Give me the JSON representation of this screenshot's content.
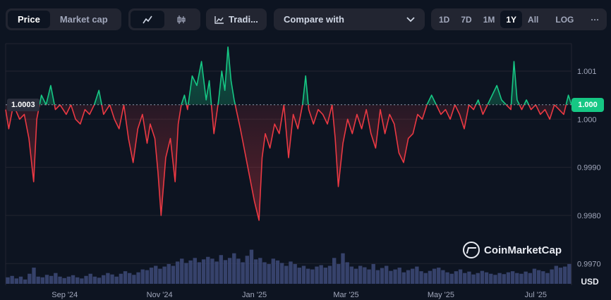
{
  "toolbar": {
    "price_label": "Price",
    "marketcap_label": "Market cap",
    "trading_label": "Tradi...",
    "compare_label": "Compare with",
    "ranges": [
      "1D",
      "7D",
      "1M",
      "1Y",
      "All"
    ],
    "active_range": "1Y",
    "log_label": "LOG",
    "more_label": "···"
  },
  "badges": {
    "current_price": "1.000",
    "reference": "1.0003"
  },
  "watermark": "CoinMarketCap",
  "colors": {
    "up": "#16c784",
    "down": "#ea3943",
    "volume": "#3e4a78",
    "background": "#0d1421",
    "grid": "#222531"
  },
  "chart_data": {
    "type": "line",
    "title": "",
    "xlabel": "",
    "ylabel": "",
    "currency": "USD",
    "baseline": 1.0003,
    "ylim": [
      0.99655,
      1.00157
    ],
    "yticks": [
      {
        "value": 1.001,
        "label": "1.001"
      },
      {
        "value": 1.0,
        "label": "1.000"
      },
      {
        "value": 0.999,
        "label": "0.9990"
      },
      {
        "value": 0.998,
        "label": "0.9980"
      },
      {
        "value": 0.997,
        "label": "0.9970"
      }
    ],
    "xlim": [
      "2024-07-25",
      "2025-07-24"
    ],
    "xticks": [
      {
        "date": "2024-09-01",
        "label": "Sep '24"
      },
      {
        "date": "2024-11-01",
        "label": "Nov '24"
      },
      {
        "date": "2025-01-01",
        "label": "Jan '25"
      },
      {
        "date": "2025-03-01",
        "label": "Mar '25"
      },
      {
        "date": "2025-05-01",
        "label": "May '25"
      },
      {
        "date": "2025-07-01",
        "label": "Jul '25"
      }
    ],
    "series": [
      {
        "points": [
          [
            "2024-07-25",
            1.0002
          ],
          [
            "2024-07-27",
            0.9998
          ],
          [
            "2024-07-30",
            1.0003
          ],
          [
            "2024-08-03",
            1.0
          ],
          [
            "2024-08-06",
            1.0001
          ],
          [
            "2024-08-09",
            0.9996
          ],
          [
            "2024-08-12",
            0.9987
          ],
          [
            "2024-08-14",
            1.0
          ],
          [
            "2024-08-17",
            1.0005
          ],
          [
            "2024-08-20",
            1.0003
          ],
          [
            "2024-08-23",
            1.0007
          ],
          [
            "2024-08-26",
            1.0002
          ],
          [
            "2024-08-29",
            1.0003
          ],
          [
            "2024-09-02",
            1.0001
          ],
          [
            "2024-09-05",
            1.0003
          ],
          [
            "2024-09-08",
            1.0
          ],
          [
            "2024-09-11",
            0.9999
          ],
          [
            "2024-09-14",
            1.0002
          ],
          [
            "2024-09-17",
            1.0001
          ],
          [
            "2024-09-20",
            1.0003
          ],
          [
            "2024-09-23",
            1.0006
          ],
          [
            "2024-09-26",
            1.0001
          ],
          [
            "2024-09-30",
            1.0003
          ],
          [
            "2024-10-03",
            1.0
          ],
          [
            "2024-10-06",
            0.9998
          ],
          [
            "2024-10-09",
            1.0003
          ],
          [
            "2024-10-12",
            0.9996
          ],
          [
            "2024-10-15",
            0.9991
          ],
          [
            "2024-10-18",
            0.9998
          ],
          [
            "2024-10-21",
            1.0001
          ],
          [
            "2024-10-24",
            0.9995
          ],
          [
            "2024-10-26",
            0.9999
          ],
          [
            "2024-10-29",
            0.9996
          ],
          [
            "2024-10-31",
            0.9989
          ],
          [
            "2024-11-02",
            0.998
          ],
          [
            "2024-11-05",
            0.9992
          ],
          [
            "2024-11-08",
            0.9996
          ],
          [
            "2024-11-11",
            0.9987
          ],
          [
            "2024-11-13",
            0.9999
          ],
          [
            "2024-11-15",
            1.0003
          ],
          [
            "2024-11-17",
            1.0005
          ],
          [
            "2024-11-19",
            1.0002
          ],
          [
            "2024-11-22",
            1.0009
          ],
          [
            "2024-11-25",
            1.0007
          ],
          [
            "2024-11-28",
            1.0012
          ],
          [
            "2024-12-01",
            1.0004
          ],
          [
            "2024-12-03",
            1.0008
          ],
          [
            "2024-12-06",
            0.9997
          ],
          [
            "2024-12-09",
            1.0004
          ],
          [
            "2024-12-11",
            1.001
          ],
          [
            "2024-12-13",
            1.0006
          ],
          [
            "2024-12-15",
            1.0015
          ],
          [
            "2024-12-17",
            1.0008
          ],
          [
            "2024-12-19",
            1.0004
          ],
          [
            "2024-12-21",
            1.0001
          ],
          [
            "2024-12-23",
            0.9998
          ],
          [
            "2024-12-26",
            0.9993
          ],
          [
            "2024-12-29",
            0.9988
          ],
          [
            "2025-01-01",
            0.9983
          ],
          [
            "2025-01-04",
            0.9979
          ],
          [
            "2025-01-06",
            0.9992
          ],
          [
            "2025-01-08",
            0.9997
          ],
          [
            "2025-01-11",
            0.9994
          ],
          [
            "2025-01-14",
            0.9999
          ],
          [
            "2025-01-17",
            0.9997
          ],
          [
            "2025-01-20",
            1.0003
          ],
          [
            "2025-01-23",
            0.9992
          ],
          [
            "2025-01-26",
            1.0001
          ],
          [
            "2025-01-29",
            0.9998
          ],
          [
            "2025-02-01",
            1.0003
          ],
          [
            "2025-02-03",
            1.0009
          ],
          [
            "2025-02-05",
            1.0002
          ],
          [
            "2025-02-08",
            0.9999
          ],
          [
            "2025-02-11",
            1.0002
          ],
          [
            "2025-02-14",
            1.0001
          ],
          [
            "2025-02-17",
            0.9999
          ],
          [
            "2025-02-20",
            1.0003
          ],
          [
            "2025-02-22",
            0.9996
          ],
          [
            "2025-02-24",
            0.9986
          ],
          [
            "2025-02-27",
            0.9995
          ],
          [
            "2025-03-02",
            1.0
          ],
          [
            "2025-03-05",
            0.9997
          ],
          [
            "2025-03-08",
            1.0001
          ],
          [
            "2025-03-11",
            0.9998
          ],
          [
            "2025-03-14",
            1.0002
          ],
          [
            "2025-03-17",
            0.9997
          ],
          [
            "2025-03-20",
            0.9994
          ],
          [
            "2025-03-23",
            1.0002
          ],
          [
            "2025-03-26",
            0.9997
          ],
          [
            "2025-03-29",
            1.0001
          ],
          [
            "2025-04-01",
            0.9999
          ],
          [
            "2025-04-04",
            0.9993
          ],
          [
            "2025-04-07",
            0.9991
          ],
          [
            "2025-04-10",
            0.9996
          ],
          [
            "2025-04-13",
            0.9997
          ],
          [
            "2025-04-16",
            1.0001
          ],
          [
            "2025-04-19",
            1.0
          ],
          [
            "2025-04-22",
            1.0003
          ],
          [
            "2025-04-25",
            1.0005
          ],
          [
            "2025-04-28",
            1.0003
          ],
          [
            "2025-05-01",
            1.0001
          ],
          [
            "2025-05-04",
            1.0002
          ],
          [
            "2025-05-07",
            1.0
          ],
          [
            "2025-05-10",
            1.0003
          ],
          [
            "2025-05-13",
            1.0001
          ],
          [
            "2025-05-16",
            0.9998
          ],
          [
            "2025-05-19",
            1.0003
          ],
          [
            "2025-05-22",
            1.0002
          ],
          [
            "2025-05-25",
            1.0004
          ],
          [
            "2025-05-28",
            1.0001
          ],
          [
            "2025-05-31",
            1.0003
          ],
          [
            "2025-06-03",
            1.0005
          ],
          [
            "2025-06-06",
            1.0007
          ],
          [
            "2025-06-09",
            1.0004
          ],
          [
            "2025-06-12",
            1.0003
          ],
          [
            "2025-06-15",
            1.0002
          ],
          [
            "2025-06-17",
            1.0012
          ],
          [
            "2025-06-19",
            1.0004
          ],
          [
            "2025-06-22",
            1.0002
          ],
          [
            "2025-06-25",
            1.0004
          ],
          [
            "2025-06-28",
            1.0002
          ],
          [
            "2025-07-01",
            1.0003
          ],
          [
            "2025-07-04",
            1.0001
          ],
          [
            "2025-07-07",
            1.0002
          ],
          [
            "2025-07-10",
            1.0
          ],
          [
            "2025-07-13",
            1.0003
          ],
          [
            "2025-07-16",
            1.0002
          ],
          [
            "2025-07-19",
            1.0001
          ],
          [
            "2025-07-22",
            1.0005
          ],
          [
            "2025-07-24",
            1.0003
          ]
        ]
      }
    ],
    "volume": [
      0.18,
      0.22,
      0.15,
      0.2,
      0.12,
      0.28,
      0.45,
      0.2,
      0.18,
      0.25,
      0.22,
      0.3,
      0.2,
      0.16,
      0.2,
      0.24,
      0.18,
      0.15,
      0.22,
      0.28,
      0.2,
      0.17,
      0.24,
      0.3,
      0.26,
      0.2,
      0.28,
      0.35,
      0.3,
      0.25,
      0.32,
      0.4,
      0.38,
      0.45,
      0.5,
      0.42,
      0.48,
      0.55,
      0.5,
      0.62,
      0.7,
      0.58,
      0.65,
      0.72,
      0.6,
      0.68,
      0.75,
      0.7,
      0.62,
      0.8,
      0.66,
      0.72,
      0.85,
      0.7,
      0.6,
      0.78,
      0.95,
      0.68,
      0.72,
      0.6,
      0.55,
      0.7,
      0.65,
      0.58,
      0.5,
      0.62,
      0.55,
      0.45,
      0.5,
      0.42,
      0.4,
      0.48,
      0.52,
      0.45,
      0.5,
      0.72,
      0.55,
      0.85,
      0.6,
      0.48,
      0.42,
      0.5,
      0.46,
      0.4,
      0.55,
      0.38,
      0.44,
      0.5,
      0.36,
      0.4,
      0.45,
      0.32,
      0.38,
      0.42,
      0.48,
      0.35,
      0.3,
      0.36,
      0.42,
      0.45,
      0.38,
      0.32,
      0.28,
      0.35,
      0.4,
      0.3,
      0.34,
      0.26,
      0.3,
      0.36,
      0.32,
      0.28,
      0.25,
      0.3,
      0.27,
      0.32,
      0.35,
      0.3,
      0.28,
      0.34,
      0.3,
      0.42,
      0.38,
      0.35,
      0.3,
      0.4,
      0.5,
      0.45,
      0.48,
      0.55
    ]
  }
}
